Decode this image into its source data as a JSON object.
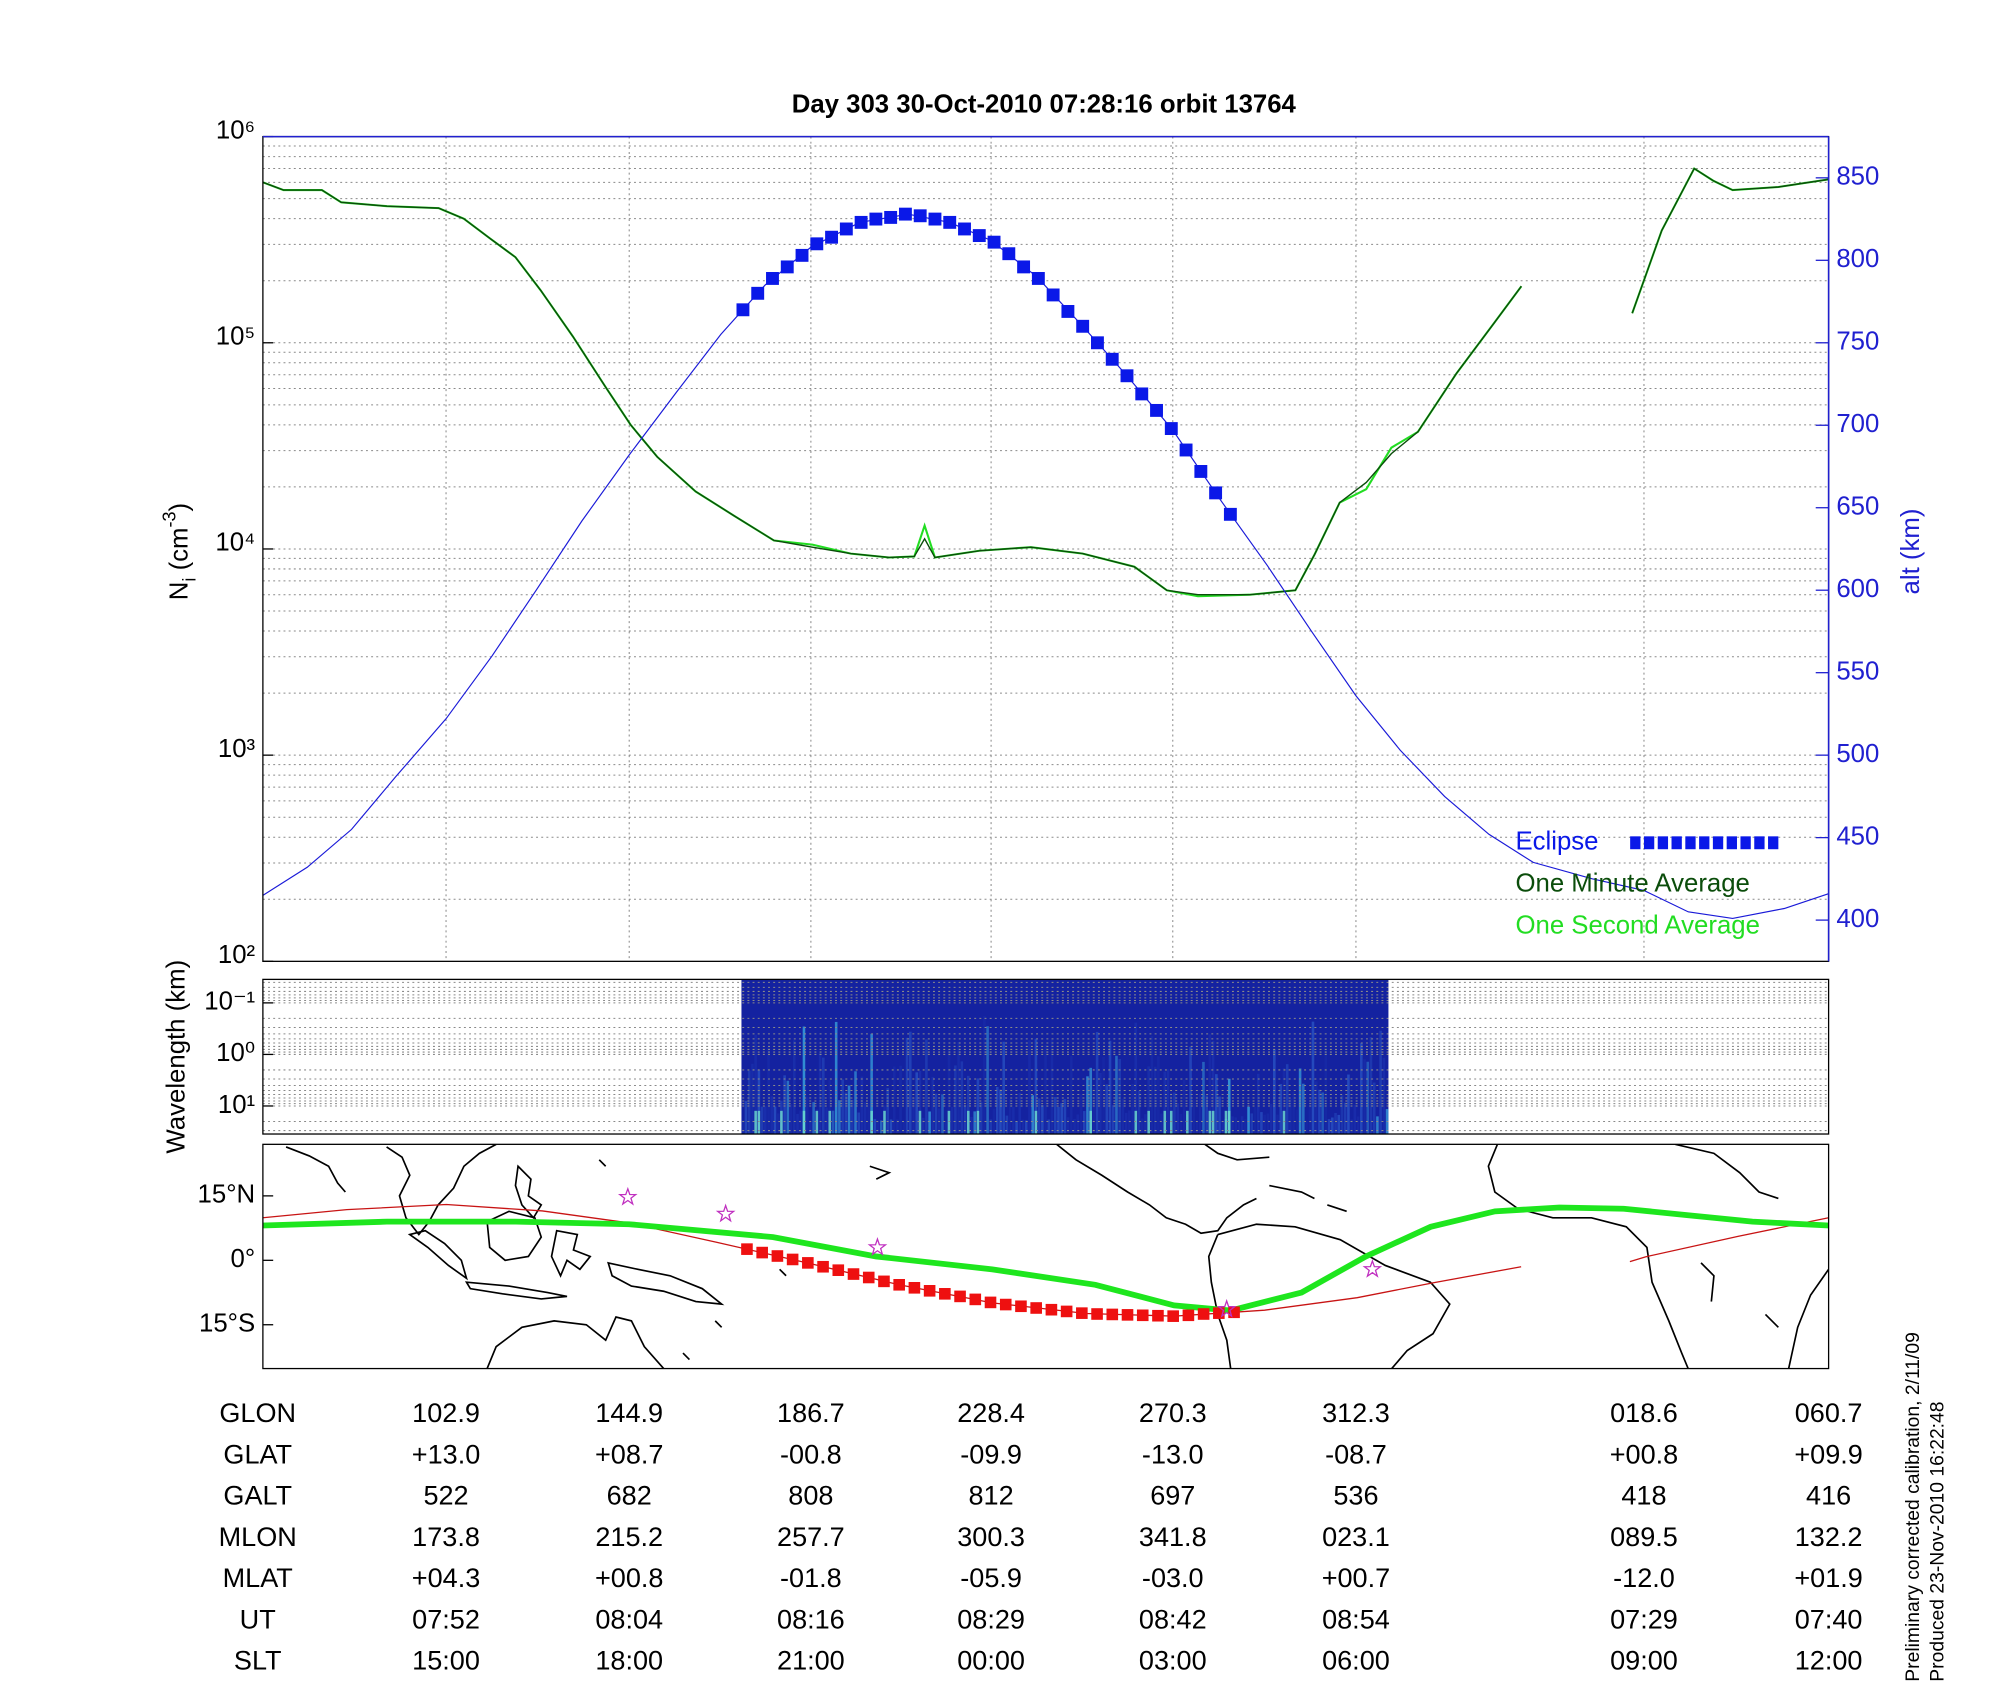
{
  "title": "Day 303  30-Oct-2010 07:28:16   orbit 13764",
  "chart_data": [
    {
      "type": "line",
      "yscale": "log",
      "grid": true,
      "legend": "lower right",
      "xlim": [
        0,
        106
      ],
      "xticks": [
        12.4,
        24.8,
        37.1,
        49.3,
        61.6,
        74.0,
        93.5,
        106
      ],
      "ylim": [
        100,
        1000000
      ],
      "yticks": [
        {
          "value": 100,
          "label": "10²"
        },
        {
          "value": 1000,
          "label": "10³"
        },
        {
          "value": 10000,
          "label": "10⁴"
        },
        {
          "value": 100000,
          "label": "10⁵"
        },
        {
          "value": 1000000,
          "label": "10⁶"
        }
      ],
      "ylabel": [
        "N",
        "i",
        " (cm",
        "-3",
        ")"
      ],
      "y2lim": [
        375,
        875
      ],
      "y2ticks": [
        400,
        450,
        500,
        550,
        600,
        650,
        700,
        750,
        800,
        850
      ],
      "y2label": "alt (km)",
      "y2color": "#2020d0",
      "series": [
        {
          "name": "Eclipse",
          "color": "#0a18e8",
          "axis": "y2",
          "marker": "square",
          "x": [
            32.5,
            33.5,
            34.5,
            35.5,
            36.5,
            37.5,
            38.5,
            39.5,
            40.5,
            41.5,
            42.5,
            43.5,
            44.5,
            45.5,
            46.5,
            47.5,
            48.5,
            49.5,
            50.5,
            51.5,
            52.5,
            53.5,
            54.5,
            55.5,
            56.5,
            57.5,
            58.5,
            59.5,
            60.5,
            61.5,
            62.5,
            63.5,
            64.5,
            65.5
          ],
          "values": [
            770,
            780,
            789,
            796,
            803,
            810,
            814,
            819,
            823,
            825,
            826,
            828,
            827,
            825,
            823,
            819,
            815,
            811,
            804,
            796,
            789,
            779,
            769,
            760,
            750,
            740,
            730,
            719,
            709,
            698,
            685,
            672,
            659,
            646
          ]
        },
        {
          "name": "One Minute Average",
          "color": "#0b4d0b",
          "x": [
            0,
            1.4,
            4.0,
            5.3,
            8.4,
            11.9,
            13.6,
            15.4,
            17.1,
            18.8,
            21.0,
            23.2,
            24.9,
            26.7,
            29.3,
            31.9,
            34.6,
            37.2,
            39.8,
            42.4,
            44.1,
            44.8,
            45.5,
            48.5,
            52.0,
            55.5,
            59.0,
            61.2,
            63.3,
            66.8,
            69.9,
            71.2,
            72.9,
            74.7,
            76.4,
            78.2,
            80.8,
            83.4,
            85.2,
            89.0,
            92.7,
            94.7,
            96.9,
            98.2,
            99.5,
            102.6,
            106
          ],
          "values": [
            600000,
            550000,
            550000,
            480000,
            460000,
            450000,
            400000,
            320000,
            260000,
            180000,
            107000,
            61000,
            40000,
            28000,
            19000,
            14500,
            11000,
            10200,
            9500,
            9100,
            9200,
            11200,
            9100,
            9800,
            10200,
            9500,
            8200,
            6300,
            6000,
            6000,
            6300,
            9400,
            16800,
            21000,
            29000,
            37000,
            71000,
            126000,
            188000,
            null,
            139000,
            350000,
            700000,
            610000,
            550000,
            570000,
            620000
          ]
        },
        {
          "name": "One Second Average",
          "color": "#22dd22",
          "x": [
            0,
            1.4,
            4.0,
            5.3,
            8.4,
            11.9,
            13.6,
            15.4,
            17.1,
            18.8,
            21.0,
            23.2,
            24.9,
            26.7,
            29.3,
            31.9,
            34.6,
            37.2,
            39.8,
            42.4,
            44.1,
            44.8,
            45.5,
            48.5,
            52.0,
            55.5,
            59.0,
            61.2,
            63.3,
            66.8,
            69.9,
            71.2,
            72.9,
            74.7,
            76.4,
            78.2,
            80.8,
            83.4,
            85.2,
            89.0,
            92.7,
            94.7,
            96.9,
            98.2,
            99.5,
            102.6,
            106
          ],
          "values": [
            600000,
            550000,
            550000,
            480000,
            460000,
            450000,
            400000,
            320000,
            260000,
            180000,
            107000,
            61000,
            40000,
            28000,
            19000,
            14500,
            11000,
            10500,
            9500,
            9100,
            9200,
            13000,
            9100,
            9800,
            10200,
            9500,
            8200,
            6300,
            5900,
            6000,
            6300,
            9400,
            16800,
            19500,
            31000,
            37000,
            71000,
            126000,
            188000,
            null,
            139000,
            350000,
            700000,
            610000,
            550000,
            570000,
            620000
          ]
        }
      ],
      "altitude": {
        "color": "#1a1ad8",
        "axis": "y2",
        "x": [
          0,
          3,
          6,
          9,
          12.4,
          15.5,
          18.5,
          21.6,
          24.8,
          28,
          31,
          34,
          37.1,
          40.4,
          43.7,
          46.5,
          49.3,
          52.4,
          55.5,
          58.5,
          61.6,
          64.8,
          68,
          71,
          74,
          77,
          80,
          83,
          86,
          90,
          93.5,
          96.5,
          99.5,
          103,
          106
        ],
        "values": [
          415,
          432,
          455,
          487,
          522,
          560,
          600,
          642,
          682,
          720,
          755,
          785,
          808,
          823,
          828,
          823,
          812,
          790,
          760,
          730,
          697,
          655,
          615,
          575,
          536,
          503,
          475,
          452,
          435,
          425,
          418,
          405,
          401,
          407,
          416
        ]
      }
    },
    {
      "type": "spectrogram",
      "yscale": "log",
      "yinvert": true,
      "grid": true,
      "ylabel": "Wavelength (km)",
      "ylim": [
        0.035,
        35
      ],
      "yticks": [
        {
          "value": 0.1,
          "label": "10⁻¹"
        },
        {
          "value": 1,
          "label": "10⁰"
        },
        {
          "value": 10,
          "label": "10¹"
        }
      ],
      "xlim": [
        0,
        106
      ],
      "extent_x": [
        32.4,
        76.2
      ],
      "color": "#1422a0"
    },
    {
      "type": "map",
      "xlim": [
        60.7,
        420.7
      ],
      "ylim": [
        -25.2,
        27
      ],
      "yticks": [
        {
          "value": 15,
          "label": "15°N"
        },
        {
          "value": 0,
          "label": "0°"
        },
        {
          "value": -15,
          "label": "15°S"
        }
      ],
      "track": {
        "color": "#c81414",
        "x": [
          60.7,
          80,
          102.9,
          125,
          144.9,
          165,
          186.7,
          207,
          228.4,
          250,
          270.3,
          291,
          312.3,
          330,
          350,
          362,
          375,
          378.6,
          400,
          420.7
        ],
        "values": [
          9.9,
          11.8,
          13.0,
          11.5,
          8.7,
          4.2,
          -0.8,
          -5.7,
          -9.9,
          -12.4,
          -13.0,
          -11.6,
          -8.7,
          -5.2,
          -1.5,
          null,
          -0.3,
          0.8,
          5.6,
          9.9
        ]
      },
      "dip_equator": {
        "color": "#1ee61e",
        "x": [
          60.7,
          89.2,
          118.8,
          144.9,
          178.0,
          201.7,
          228.4,
          252.1,
          270.2,
          283.2,
          299.5,
          314.3,
          329.2,
          344.0,
          358.8,
          373.6,
          388.4,
          403.2,
          420.7
        ],
        "values": [
          8.1,
          9.0,
          9.0,
          8.4,
          5.4,
          0.9,
          -2.1,
          -5.7,
          -10.5,
          -11.7,
          -7.5,
          0.9,
          7.8,
          11.4,
          12.3,
          12.0,
          10.5,
          9.0,
          8.1
        ]
      },
      "eclipse": {
        "color": "#ee1010",
        "x": [
          172,
          175.5,
          179,
          182.5,
          186,
          189.5,
          193,
          196.5,
          200,
          203.5,
          207,
          210.5,
          214,
          217.5,
          221,
          224.5,
          228,
          231.5,
          235,
          238.5,
          242,
          245.5,
          249,
          252.5,
          256,
          259.5,
          263,
          266.5,
          270,
          273.5,
          277,
          280.5,
          284
        ],
        "values": [
          2.6,
          1.8,
          1.0,
          0.2,
          -0.6,
          -1.5,
          -2.3,
          -3.2,
          -4.0,
          -4.9,
          -5.7,
          -6.4,
          -7.1,
          -7.8,
          -8.4,
          -9.1,
          -9.8,
          -10.3,
          -10.7,
          -11.1,
          -11.5,
          -11.9,
          -12.3,
          -12.5,
          -12.6,
          -12.7,
          -12.8,
          -12.9,
          -13.0,
          -12.8,
          -12.5,
          -12.3,
          -12.1
        ]
      },
      "stars": {
        "color": "#c030c0",
        "x": [
          144.6,
          167.1,
          202.0,
          282.3,
          315.8
        ],
        "values": [
          14.7,
          10.8,
          3.0,
          -11.4,
          -2.1
        ]
      }
    }
  ],
  "ephemeris": {
    "rows": [
      {
        "label": "GLON",
        "values": [
          "102.9",
          "144.9",
          "186.7",
          "228.4",
          "270.3",
          "312.3",
          "018.6",
          "060.7"
        ]
      },
      {
        "label": "GLAT",
        "values": [
          "+13.0",
          "+08.7",
          "-00.8",
          "-09.9",
          "-13.0",
          "-08.7",
          "+00.8",
          "+09.9"
        ]
      },
      {
        "label": "GALT",
        "values": [
          "522",
          "682",
          "808",
          "812",
          "697",
          "536",
          "418",
          "416"
        ]
      },
      {
        "label": "MLON",
        "values": [
          "173.8",
          "215.2",
          "257.7",
          "300.3",
          "341.8",
          "023.1",
          "089.5",
          "132.2"
        ]
      },
      {
        "label": "MLAT",
        "values": [
          "+04.3",
          "+00.8",
          "-01.8",
          "-05.9",
          "-03.0",
          "+00.7",
          "-12.0",
          "+01.9"
        ]
      },
      {
        "label": "UT",
        "values": [
          "07:52",
          "08:04",
          "08:16",
          "08:29",
          "08:42",
          "08:54",
          "07:29",
          "07:40"
        ]
      },
      {
        "label": "SLT",
        "values": [
          "15:00",
          "18:00",
          "21:00",
          "00:00",
          "03:00",
          "06:00",
          "09:00",
          "12:00"
        ]
      }
    ]
  },
  "footer": [
    "Preliminary corrected calibration, 2/11/09",
    "Produced 23-Nov-2010 16:22:48"
  ]
}
